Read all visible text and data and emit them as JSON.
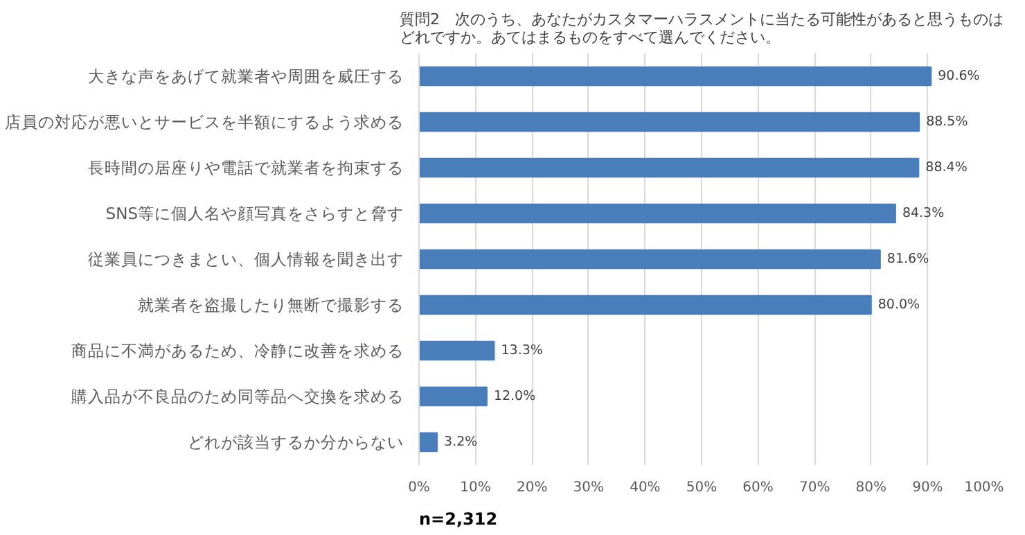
{
  "chart_data": {
    "type": "bar",
    "orientation": "horizontal",
    "title": "質問2　次のうち、あなたがカスタマーハラスメントに当たる可能性があると思うものはどれですか。あてはまるものをすべて選んでください。",
    "categories": [
      "大きな声をあげて就業者や周囲を威圧する",
      "店員の対応が悪いとサービスを半額にするよう求める",
      "長時間の居座りや電話で就業者を拘束する",
      "SNS等に個人名や顔写真をさらすと脅す",
      "従業員につきまとい、個人情報を聞き出す",
      "就業者を盗撮したり無断で撮影する",
      "商品に不満があるため、冷静に改善を求める",
      "購入品が不良品のため同等品へ交換を求める",
      "どれが該当するか分からない"
    ],
    "values": [
      90.6,
      88.5,
      88.4,
      84.3,
      81.6,
      80.0,
      13.3,
      12.0,
      3.2
    ],
    "value_labels": [
      "90.6%",
      "88.5%",
      "88.4%",
      "84.3%",
      "81.6%",
      "80.0%",
      "13.3%",
      "12.0%",
      "3.2%"
    ],
    "color": "#4a7ebb",
    "xlim": [
      0,
      100
    ],
    "xticks": [
      {
        "value": 0,
        "label": "0%"
      },
      {
        "value": 10,
        "label": "10%"
      },
      {
        "value": 20,
        "label": "20%"
      },
      {
        "value": 30,
        "label": "30%"
      },
      {
        "value": 40,
        "label": "40%"
      },
      {
        "value": 50,
        "label": "50%"
      },
      {
        "value": 60,
        "label": "60%"
      },
      {
        "value": 70,
        "label": "70%"
      },
      {
        "value": 80,
        "label": "80%"
      },
      {
        "value": 90,
        "label": "90%"
      },
      {
        "value": 100,
        "label": "100%"
      }
    ],
    "grid": "x",
    "annotations": [
      "n=2,312"
    ]
  }
}
